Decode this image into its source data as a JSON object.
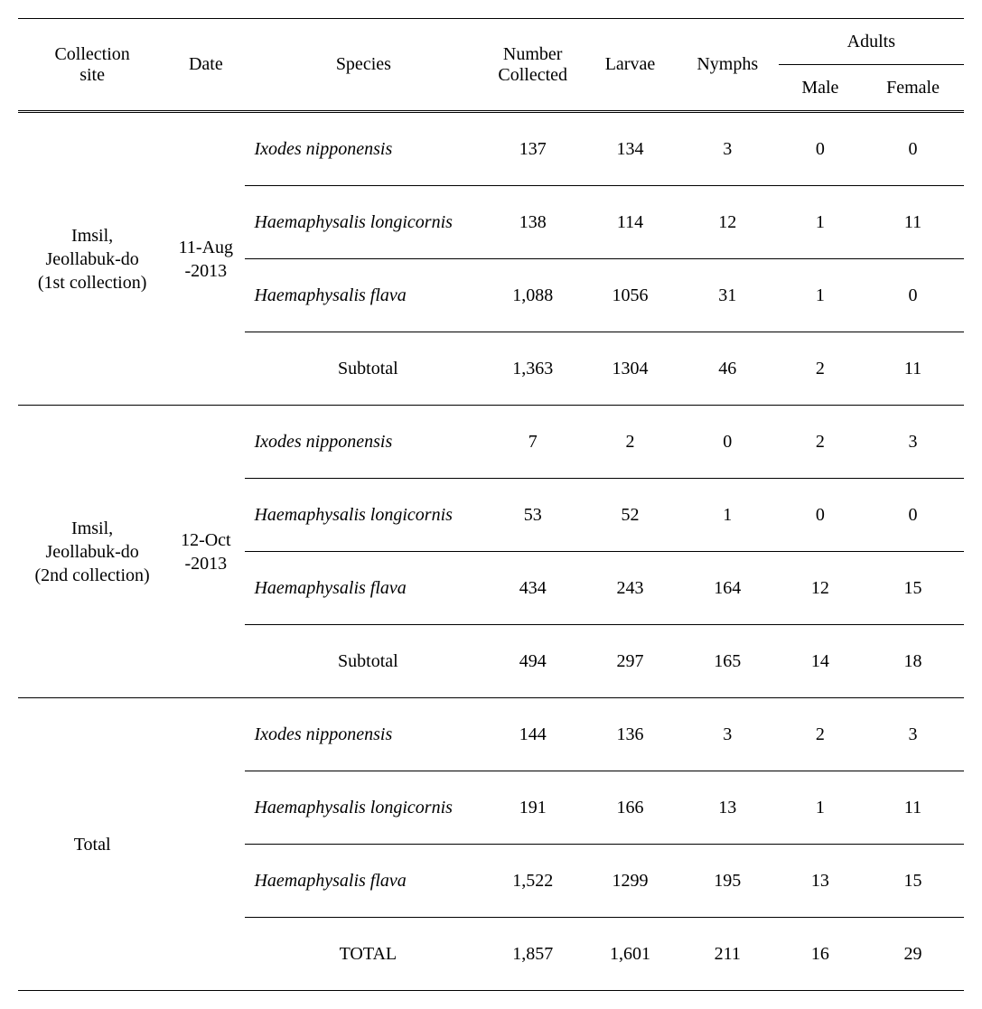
{
  "headers": {
    "site": "Collection\nsite",
    "date": "Date",
    "species": "Species",
    "number": "Number\nCollected",
    "larvae": "Larvae",
    "nymphs": "Nymphs",
    "adults": "Adults",
    "male": "Male",
    "female": "Female"
  },
  "groups": [
    {
      "site": "Imsil,\nJeollabuk-do\n(1st collection)",
      "date": "11-Aug\n-2013",
      "rows": [
        {
          "species": "Ixodes nipponensis",
          "italic": true,
          "num": "137",
          "larvae": "134",
          "nymphs": "3",
          "male": "0",
          "female": "0"
        },
        {
          "species": "Haemaphysalis longicornis",
          "italic": true,
          "num": "138",
          "larvae": "114",
          "nymphs": "12",
          "male": "1",
          "female": "11"
        },
        {
          "species": "Haemaphysalis flava",
          "italic": true,
          "num": "1,088",
          "larvae": "1056",
          "nymphs": "31",
          "male": "1",
          "female": "0"
        },
        {
          "species": "Subtotal",
          "italic": false,
          "num": "1,363",
          "larvae": "1304",
          "nymphs": "46",
          "male": "2",
          "female": "11"
        }
      ]
    },
    {
      "site": "Imsil,\nJeollabuk-do\n(2nd collection)",
      "date": "12-Oct\n-2013",
      "rows": [
        {
          "species": "Ixodes nipponensis",
          "italic": true,
          "num": "7",
          "larvae": "2",
          "nymphs": "0",
          "male": "2",
          "female": "3"
        },
        {
          "species": "Haemaphysalis longicornis",
          "italic": true,
          "num": "53",
          "larvae": "52",
          "nymphs": "1",
          "male": "0",
          "female": "0"
        },
        {
          "species": "Haemaphysalis flava",
          "italic": true,
          "num": "434",
          "larvae": "243",
          "nymphs": "164",
          "male": "12",
          "female": "15"
        },
        {
          "species": "Subtotal",
          "italic": false,
          "num": "494",
          "larvae": "297",
          "nymphs": "165",
          "male": "14",
          "female": "18"
        }
      ]
    },
    {
      "site": "Total",
      "date": "",
      "rows": [
        {
          "species": "Ixodes nipponensis",
          "italic": true,
          "num": "144",
          "larvae": "136",
          "nymphs": "3",
          "male": "2",
          "female": "3"
        },
        {
          "species": "Haemaphysalis longicornis",
          "italic": true,
          "num": "191",
          "larvae": "166",
          "nymphs": "13",
          "male": "1",
          "female": "11"
        },
        {
          "species": "Haemaphysalis flava",
          "italic": true,
          "num": "1,522",
          "larvae": "1299",
          "nymphs": "195",
          "male": "13",
          "female": "15"
        },
        {
          "species": "TOTAL",
          "italic": false,
          "num": "1,857",
          "larvae": "1,601",
          "nymphs": "211",
          "male": "16",
          "female": "29"
        }
      ]
    }
  ],
  "col_widths": [
    "160",
    "85",
    "255",
    "110",
    "100",
    "110",
    "90",
    "110"
  ]
}
